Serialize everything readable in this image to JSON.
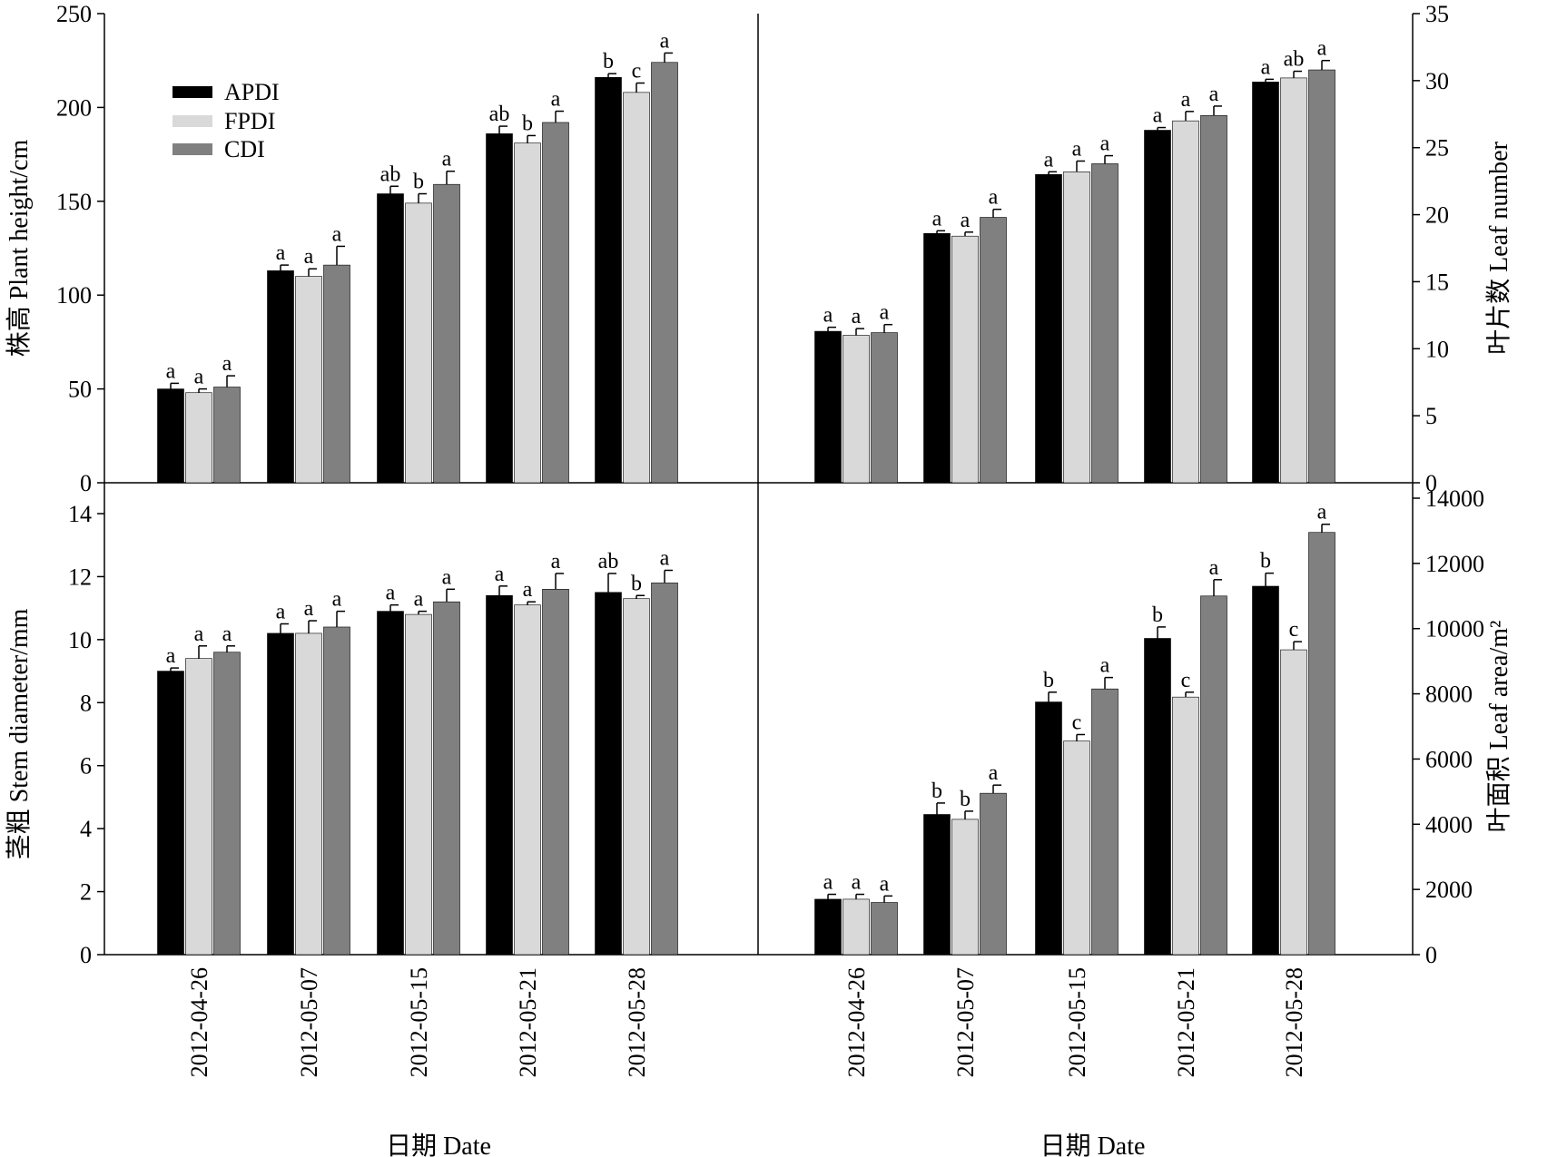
{
  "colors": {
    "APDI": "#000000",
    "FPDI": "#d9d9d9",
    "CDI": "#808080"
  },
  "legend": [
    "APDI",
    "FPDI",
    "CDI"
  ],
  "chart_data": [
    {
      "type": "bar",
      "panel": "top-left",
      "categories": [
        "2012-04-26",
        "2012-05-07",
        "2012-05-15",
        "2012-05-21",
        "2012-05-28"
      ],
      "ylabel": "株高  Plant height/cm",
      "ylim": [
        0,
        250
      ],
      "yticks": [
        0,
        50,
        100,
        150,
        200,
        250
      ],
      "y_axis_side": "left",
      "legend": "top-left",
      "series": [
        {
          "name": "APDI",
          "values": [
            50,
            113,
            154,
            186,
            216
          ],
          "errors": [
            3,
            3,
            4,
            4,
            2
          ],
          "letters": [
            "a",
            "a",
            "ab",
            "ab",
            "b"
          ]
        },
        {
          "name": "FPDI",
          "values": [
            48,
            110,
            149,
            181,
            208
          ],
          "errors": [
            2,
            4,
            5,
            4,
            5
          ],
          "letters": [
            "a",
            "a",
            "b",
            "b",
            "c"
          ]
        },
        {
          "name": "CDI",
          "values": [
            51,
            116,
            159,
            192,
            224
          ],
          "errors": [
            6,
            10,
            7,
            6,
            5
          ],
          "letters": [
            "a",
            "a",
            "a",
            "a",
            "a"
          ]
        }
      ]
    },
    {
      "type": "bar",
      "panel": "top-right",
      "categories": [
        "2012-04-26",
        "2012-05-07",
        "2012-05-15",
        "2012-05-21",
        "2012-05-28"
      ],
      "ylabel": "叶片数 Leaf number",
      "ylim": [
        0,
        35
      ],
      "yticks": [
        0,
        5,
        10,
        15,
        20,
        25,
        30,
        35
      ],
      "y_axis_side": "right",
      "series": [
        {
          "name": "APDI",
          "values": [
            11.3,
            18.6,
            23.0,
            26.3,
            29.9
          ],
          "errors": [
            0.3,
            0.2,
            0.2,
            0.2,
            0.2
          ],
          "letters": [
            "a",
            "a",
            "a",
            "a",
            "a"
          ]
        },
        {
          "name": "FPDI",
          "values": [
            11.0,
            18.4,
            23.2,
            27.0,
            30.2
          ],
          "errors": [
            0.5,
            0.3,
            0.8,
            0.7,
            0.5
          ],
          "letters": [
            "a",
            "a",
            "a",
            "a",
            "ab"
          ]
        },
        {
          "name": "CDI",
          "values": [
            11.2,
            19.8,
            23.8,
            27.4,
            30.8
          ],
          "errors": [
            0.6,
            0.6,
            0.6,
            0.7,
            0.7
          ],
          "letters": [
            "a",
            "a",
            "a",
            "a",
            "a"
          ]
        }
      ]
    },
    {
      "type": "bar",
      "panel": "bottom-left",
      "categories": [
        "2012-04-26",
        "2012-05-07",
        "2012-05-15",
        "2012-05-21",
        "2012-05-28"
      ],
      "xlabel": "日期 Date",
      "ylabel": "茎粗 Stem diameter/mm",
      "ylim": [
        0,
        15
      ],
      "yticks": [
        0,
        2,
        4,
        6,
        8,
        10,
        12,
        14
      ],
      "y_axis_side": "left",
      "series": [
        {
          "name": "APDI",
          "values": [
            9.0,
            10.2,
            10.9,
            11.4,
            11.5
          ],
          "errors": [
            0.1,
            0.3,
            0.2,
            0.3,
            0.6
          ],
          "letters": [
            "a",
            "a",
            "a",
            "a",
            "ab"
          ]
        },
        {
          "name": "FPDI",
          "values": [
            9.4,
            10.2,
            10.8,
            11.1,
            11.3
          ],
          "errors": [
            0.4,
            0.4,
            0.1,
            0.1,
            0.1
          ],
          "letters": [
            "a",
            "a",
            "a",
            "a",
            "b"
          ]
        },
        {
          "name": "CDI",
          "values": [
            9.6,
            10.4,
            11.2,
            11.6,
            11.8
          ],
          "errors": [
            0.2,
            0.5,
            0.4,
            0.5,
            0.4
          ],
          "letters": [
            "a",
            "a",
            "a",
            "a",
            "a"
          ]
        }
      ]
    },
    {
      "type": "bar",
      "panel": "bottom-right",
      "categories": [
        "2012-04-26",
        "2012-05-07",
        "2012-05-15",
        "2012-05-21",
        "2012-05-28"
      ],
      "xlabel": "日期 Date",
      "ylabel": "叶面积 Leaf area/m²",
      "ylim": [
        0,
        14000
      ],
      "yticks": [
        0,
        2000,
        4000,
        6000,
        8000,
        10000,
        12000,
        14000
      ],
      "y_axis_side": "right",
      "series": [
        {
          "name": "APDI",
          "values": [
            1700,
            4300,
            7750,
            9700,
            11300
          ],
          "errors": [
            150,
            350,
            300,
            350,
            400
          ],
          "letters": [
            "a",
            "b",
            "b",
            "b",
            "b"
          ]
        },
        {
          "name": "FPDI",
          "values": [
            1700,
            4150,
            6550,
            7900,
            9350
          ],
          "errors": [
            150,
            250,
            200,
            150,
            250
          ],
          "letters": [
            "a",
            "b",
            "c",
            "c",
            "c"
          ]
        },
        {
          "name": "CDI",
          "values": [
            1600,
            4950,
            8150,
            11000,
            12950
          ],
          "errors": [
            200,
            250,
            350,
            500,
            250
          ],
          "letters": [
            "a",
            "a",
            "a",
            "a",
            "a"
          ]
        }
      ]
    }
  ]
}
